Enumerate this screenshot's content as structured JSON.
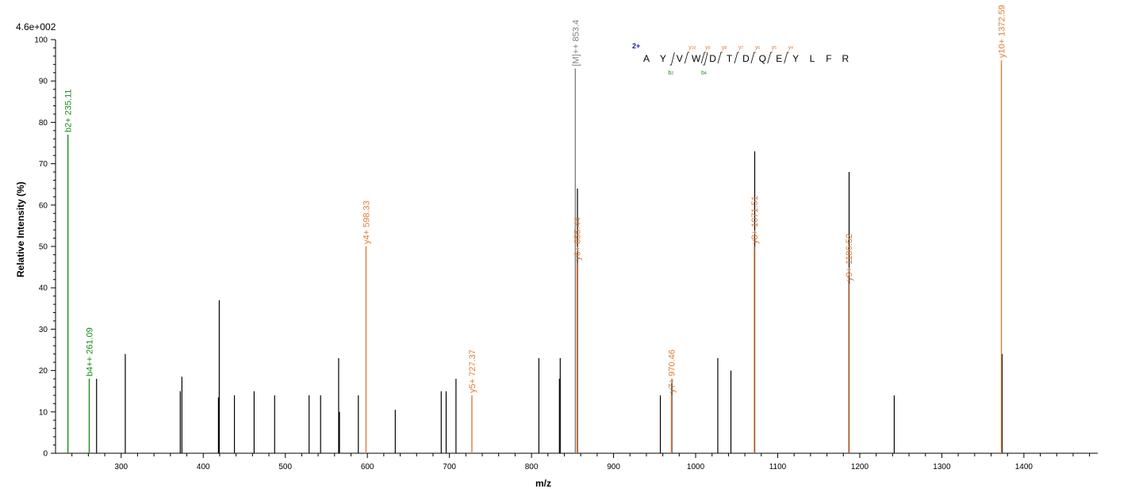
{
  "chart_data": {
    "type": "bar",
    "scale_label": "4.6e+002",
    "xlabel": "m/z",
    "ylabel": "Relative   Intensity (%)",
    "xlim": [
      220,
      1490
    ],
    "ylim": [
      0,
      100
    ],
    "x_ticks": [
      300,
      400,
      500,
      600,
      700,
      800,
      900,
      1000,
      1100,
      1200,
      1300,
      1400
    ],
    "y_ticks": [
      0,
      10,
      20,
      30,
      40,
      50,
      60,
      70,
      80,
      90,
      100
    ],
    "colors": {
      "b": "#1a8a1a",
      "y": "#e07b39",
      "precursor": "#808080",
      "unassigned": "#000000"
    },
    "unassigned_peaks": [
      {
        "mz": 270.0,
        "i": 18
      },
      {
        "mz": 305.0,
        "i": 24
      },
      {
        "mz": 372.0,
        "i": 15
      },
      {
        "mz": 374.0,
        "i": 18.5
      },
      {
        "mz": 418.5,
        "i": 13.5
      },
      {
        "mz": 419.5,
        "i": 37
      },
      {
        "mz": 438.0,
        "i": 14
      },
      {
        "mz": 462.0,
        "i": 15
      },
      {
        "mz": 487.0,
        "i": 14
      },
      {
        "mz": 529.0,
        "i": 14
      },
      {
        "mz": 543.0,
        "i": 14
      },
      {
        "mz": 565.0,
        "i": 23
      },
      {
        "mz": 566.0,
        "i": 10
      },
      {
        "mz": 589.0,
        "i": 14
      },
      {
        "mz": 634.0,
        "i": 10.5
      },
      {
        "mz": 690.0,
        "i": 15
      },
      {
        "mz": 696.0,
        "i": 15
      },
      {
        "mz": 708.0,
        "i": 18
      },
      {
        "mz": 809.0,
        "i": 23
      },
      {
        "mz": 834.0,
        "i": 18
      },
      {
        "mz": 835.0,
        "i": 23
      },
      {
        "mz": 856.0,
        "i": 64
      },
      {
        "mz": 957.0,
        "i": 14
      },
      {
        "mz": 971.0,
        "i": 18
      },
      {
        "mz": 1027.0,
        "i": 23
      },
      {
        "mz": 1043.0,
        "i": 20
      },
      {
        "mz": 1072.0,
        "i": 73
      },
      {
        "mz": 1187.0,
        "i": 68
      },
      {
        "mz": 1242.0,
        "i": 14
      },
      {
        "mz": 1373.5,
        "i": 24
      }
    ],
    "annotated_peaks": [
      {
        "mz": 235.11,
        "i": 77,
        "ion": "b",
        "label": "b2+ 235.11"
      },
      {
        "mz": 261.09,
        "i": 18,
        "ion": "b",
        "label": "b4++ 261.09"
      },
      {
        "mz": 598.33,
        "i": 50,
        "ion": "y",
        "label": "y4+ 598.33"
      },
      {
        "mz": 727.37,
        "i": 14,
        "ion": "y",
        "label": "y5+ 727.37"
      },
      {
        "mz": 853.4,
        "i": 93,
        "ion": "precursor",
        "label": "[M]++ 853.4"
      },
      {
        "mz": 855.44,
        "i": 46,
        "ion": "y",
        "label": "y6+ 855.44"
      },
      {
        "mz": 970.46,
        "i": 14,
        "ion": "y",
        "label": "y7+ 970.46"
      },
      {
        "mz": 1071.51,
        "i": 50,
        "ion": "y",
        "label": "y8+ 1071.51"
      },
      {
        "mz": 1186.52,
        "i": 41,
        "ion": "y",
        "label": "y9+ 1186.52"
      },
      {
        "mz": 1372.59,
        "i": 95,
        "ion": "y",
        "label": "y10+ 1372.59"
      }
    ],
    "sequence": {
      "charge": "2+",
      "residues": [
        "A",
        "Y",
        "V",
        "W",
        "D",
        "T",
        "D",
        "Q",
        "E",
        "Y",
        "L",
        "F",
        "R"
      ],
      "b_ions": [
        {
          "after": 2,
          "label": "b",
          "sub": "2"
        },
        {
          "after": 4,
          "label": "b",
          "sub": "4"
        }
      ],
      "y_ions": [
        {
          "after": 3,
          "label": "y",
          "sub": "10"
        },
        {
          "after": 4,
          "label": "y",
          "sub": "9"
        },
        {
          "after": 5,
          "label": "y",
          "sub": "8"
        },
        {
          "after": 6,
          "label": "y",
          "sub": "7"
        },
        {
          "after": 7,
          "label": "y",
          "sub": "6"
        },
        {
          "after": 8,
          "label": "y",
          "sub": "5"
        },
        {
          "after": 9,
          "label": "y",
          "sub": "4"
        }
      ]
    }
  }
}
